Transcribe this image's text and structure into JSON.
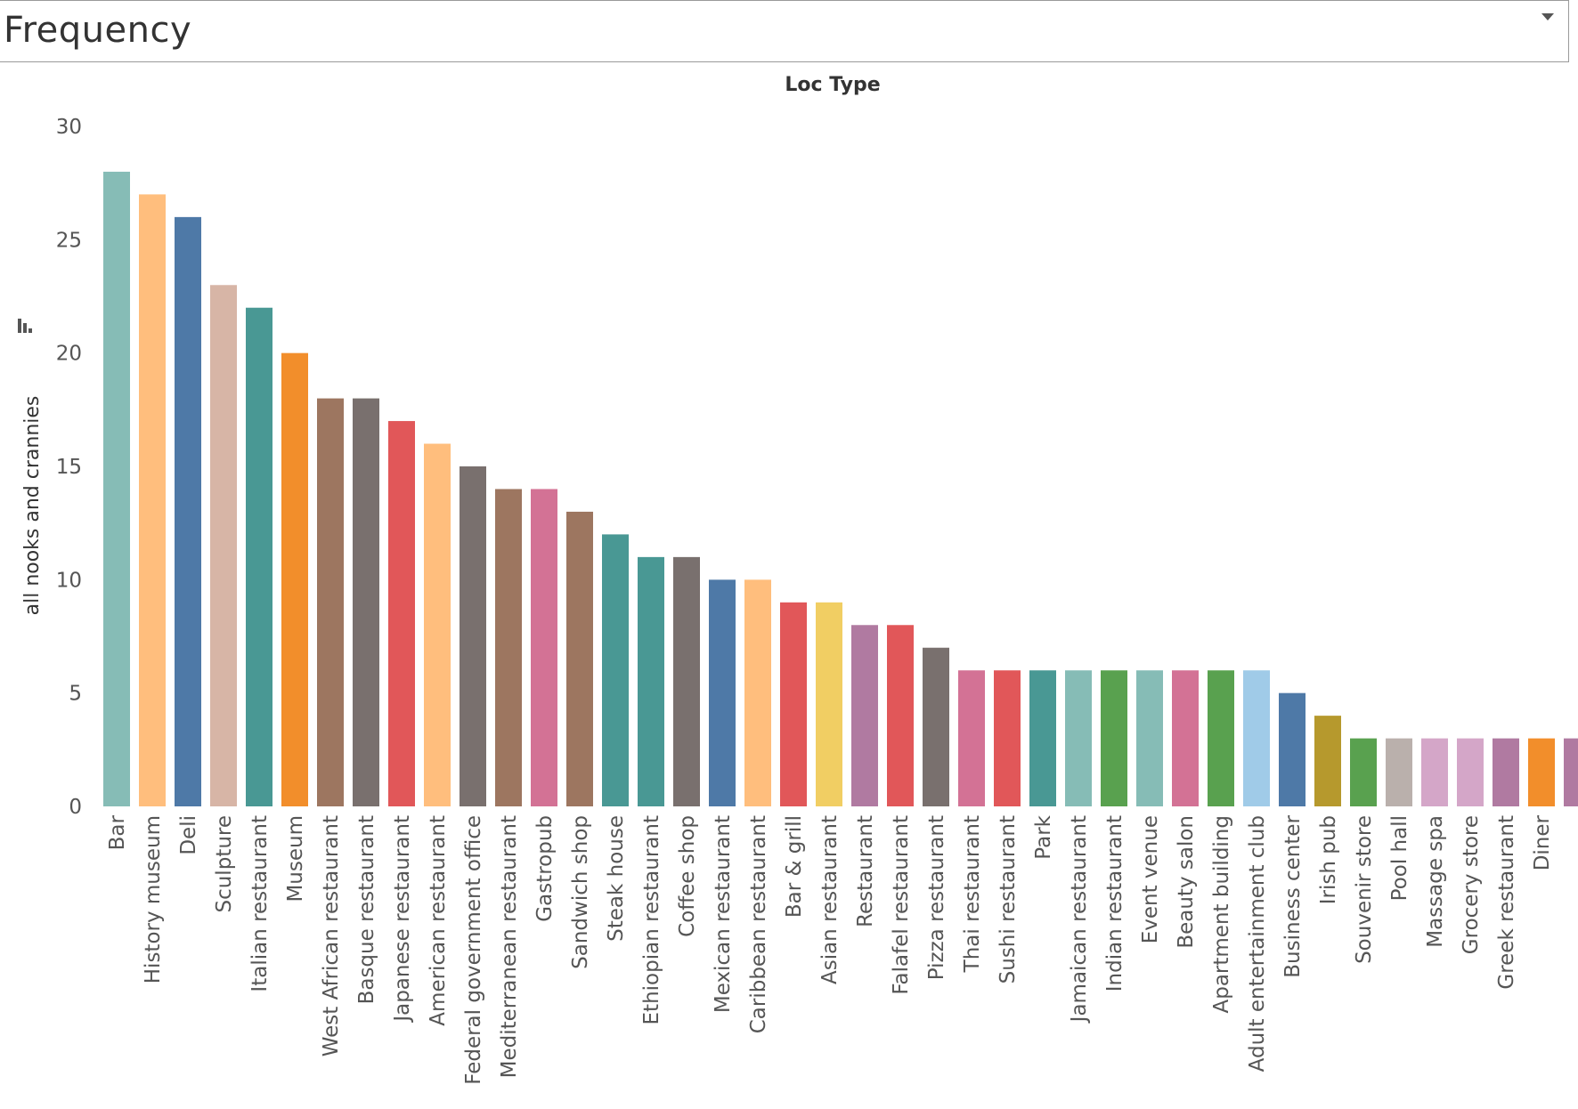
{
  "header": {
    "title": "Frequency"
  },
  "chart_data": {
    "type": "bar",
    "title": "Loc Type",
    "xlabel": "",
    "ylabel": "all nooks and crannies",
    "ylim": [
      0,
      30
    ],
    "yticks": [
      0,
      5,
      10,
      15,
      20,
      25,
      30
    ],
    "grid": false,
    "legend": "none",
    "categories": [
      "Bar",
      "History museum",
      "Deli",
      "Sculpture",
      "Italian restaurant",
      "Museum",
      "West African restaurant",
      "Basque restaurant",
      "Japanese restaurant",
      "American restaurant",
      "Federal government office",
      "Mediterranean restaurant",
      "Gastropub",
      "Sandwich shop",
      "Steak house",
      "Ethiopian restaurant",
      "Coffee shop",
      "Mexican restaurant",
      "Caribbean restaurant",
      "Bar & grill",
      "Asian restaurant",
      "Restaurant",
      "Falafel restaurant",
      "Pizza restaurant",
      "Thai restaurant",
      "Sushi restaurant",
      "Park",
      "Jamaican restaurant",
      "Indian restaurant",
      "Event venue",
      "Beauty salon",
      "Apartment building",
      "Adult entertainment club",
      "Business center",
      "Irish pub",
      "Souvenir store",
      "Pool hall",
      "Massage spa",
      "Grocery store",
      "Greek restaurant",
      "Diner",
      ""
    ],
    "values": [
      28,
      27,
      26,
      23,
      22,
      20,
      18,
      18,
      17,
      16,
      15,
      14,
      14,
      13,
      12,
      11,
      11,
      10,
      10,
      9,
      9,
      8,
      8,
      7,
      6,
      6,
      6,
      6,
      6,
      6,
      6,
      6,
      6,
      5,
      4,
      3,
      3,
      3,
      3,
      3,
      3,
      3
    ],
    "colors": [
      "#86bcb6",
      "#ffbe7d",
      "#4e79a7",
      "#d7b5a6",
      "#499894",
      "#f28e2b",
      "#9d7660",
      "#79706e",
      "#e15759",
      "#ffbe7d",
      "#79706e",
      "#9d7660",
      "#d37295",
      "#9d7660",
      "#499894",
      "#499894",
      "#79706e",
      "#4e79a7",
      "#ffbe7d",
      "#e15759",
      "#f1ce63",
      "#b07aa1",
      "#e15759",
      "#79706e",
      "#d37295",
      "#e15759",
      "#499894",
      "#86bcb6",
      "#59a14f",
      "#86bcb6",
      "#d37295",
      "#59a14f",
      "#a0cbe8",
      "#4e79a7",
      "#b6992d",
      "#59a14f",
      "#bab0ac",
      "#d4a6c8",
      "#d4a6c8",
      "#b07aa1",
      "#f28e2b",
      "#b07aa1"
    ]
  }
}
